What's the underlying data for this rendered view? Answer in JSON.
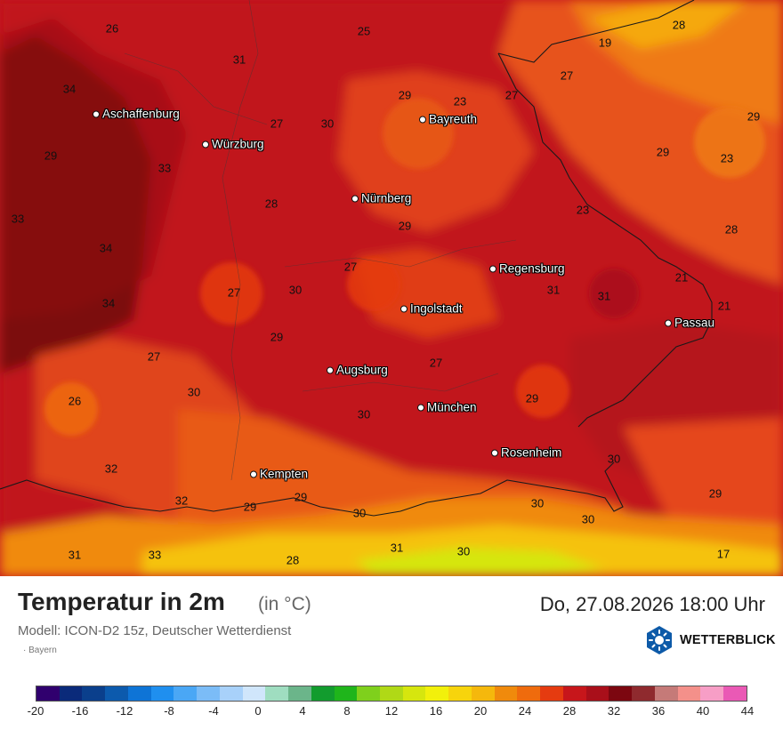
{
  "map": {
    "temperature_labels": [
      "26",
      "25",
      "28",
      "19",
      "31",
      "27",
      "34",
      "29",
      "23",
      "27",
      "29",
      "30",
      "27",
      "33",
      "29",
      "29",
      "23",
      "29",
      "28",
      "23",
      "33",
      "34",
      "28",
      "27",
      "21",
      "30",
      "31",
      "31",
      "27",
      "21",
      "34",
      "29",
      "27",
      "27",
      "30",
      "26",
      "29",
      "30",
      "30",
      "32",
      "29",
      "32",
      "29",
      "30",
      "30",
      "30",
      "29",
      "31",
      "30",
      "31",
      "28",
      "33",
      "17"
    ],
    "cities": [
      "Aschaffenburg",
      "Würzburg",
      "Bayreuth",
      "Nürnberg",
      "Regensburg",
      "Ingolstadt",
      "Passau",
      "Augsburg",
      "München",
      "Rosenheim",
      "Kempten"
    ]
  },
  "footer": {
    "title": "Temperatur in 2m",
    "unit": "(in °C)",
    "datetime": "Do, 27.08.2026 18:00 Uhr",
    "model": "Modell: ICON-D2 15z, Deutscher Wetterdienst",
    "region": "Bayern",
    "brand": "WETTERBLICK"
  },
  "legend": {
    "colors": [
      "#30006e",
      "#0a2a7a",
      "#0a3f8c",
      "#0c5aad",
      "#0e74d6",
      "#1f8fef",
      "#4aa7f5",
      "#7bbcf7",
      "#a8d1fa",
      "#d0e6fb",
      "#9fddc0",
      "#6bb58a",
      "#129c2e",
      "#1fb51b",
      "#7fd01c",
      "#b0d916",
      "#d6e60e",
      "#f2f00b",
      "#f7d40c",
      "#f5b80c",
      "#f08a0c",
      "#ef6b0d",
      "#e53b10",
      "#c7161b",
      "#a90f1a",
      "#7c0710",
      "#8f2a2e",
      "#c57a78",
      "#f4908a",
      "#f79ec6",
      "#ea59b5"
    ],
    "labels": [
      "-20",
      "-16",
      "-12",
      "-8",
      "-4",
      "0",
      "4",
      "8",
      "12",
      "16",
      "20",
      "24",
      "28",
      "32",
      "36",
      "40",
      "44"
    ]
  }
}
